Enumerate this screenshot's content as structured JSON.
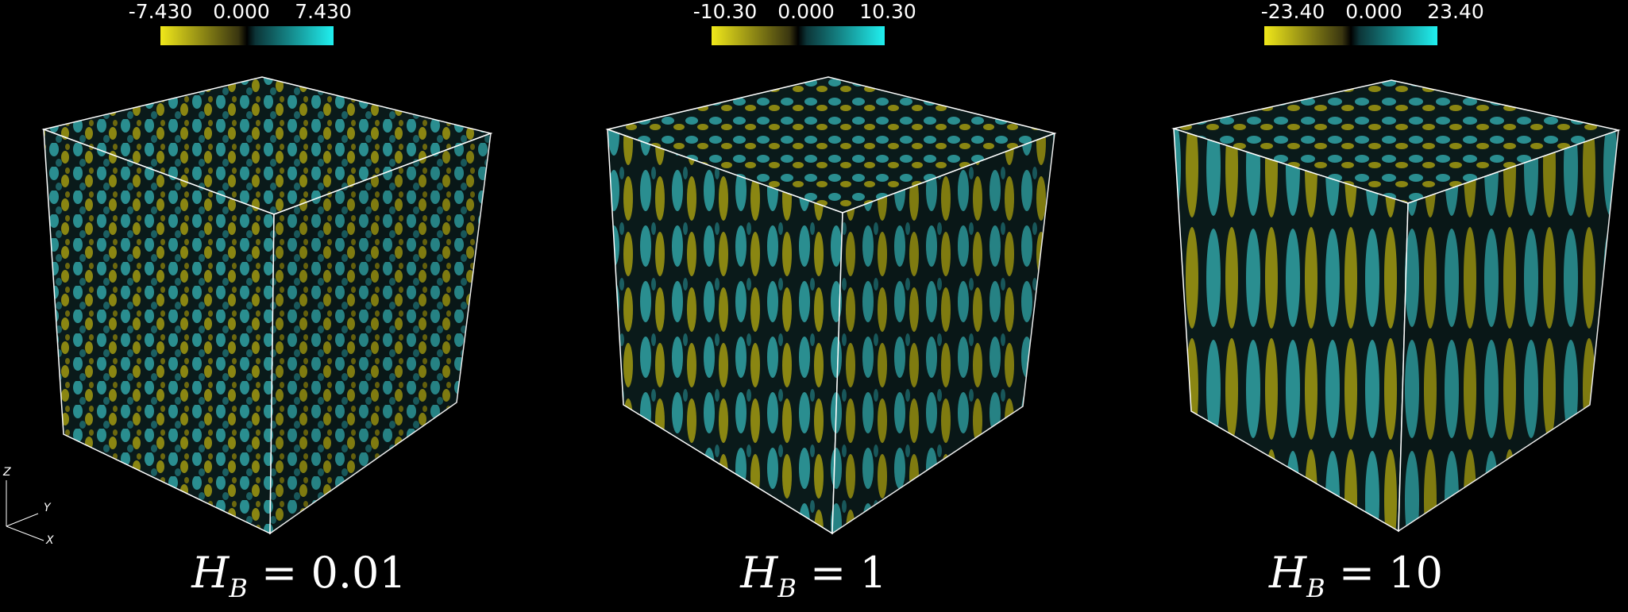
{
  "panels": [
    {
      "colorbar": {
        "min_label": "-7.430",
        "mid_label": "0.000",
        "max_label": "7.430"
      },
      "title_var": "H",
      "title_sub": "B",
      "title_value": "0.01"
    },
    {
      "colorbar": {
        "min_label": "-10.30",
        "mid_label": "0.000",
        "max_label": "10.30"
      },
      "title_var": "H",
      "title_sub": "B",
      "title_value": "1"
    },
    {
      "colorbar": {
        "min_label": "-23.40",
        "mid_label": "0.000",
        "max_label": "23.40"
      },
      "title_var": "H",
      "title_sub": "B",
      "title_value": "10"
    }
  ],
  "axes": {
    "z_label": "Z",
    "y_label": "Y",
    "x_label": "X"
  },
  "colors": {
    "negative": "#e9e21a",
    "positive": "#1fe6e6",
    "background": "#000000",
    "cube_edge": "#ffffff"
  }
}
